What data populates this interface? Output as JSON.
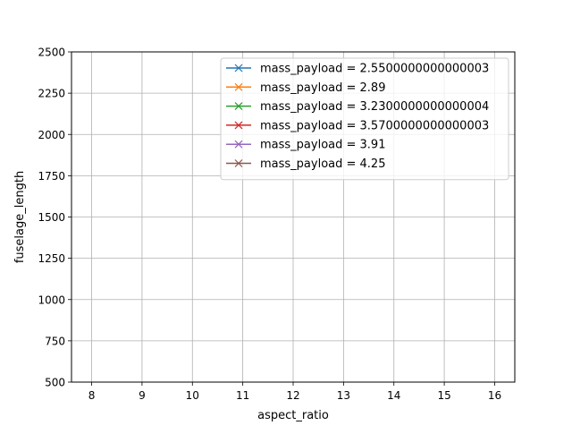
{
  "chart_data": {
    "type": "line",
    "title": "",
    "xlabel": "aspect_ratio",
    "ylabel": "fuselage_length",
    "xlim": [
      7.6,
      16.4
    ],
    "ylim": [
      500,
      2500
    ],
    "xticks": [
      8,
      9,
      10,
      11,
      12,
      13,
      14,
      15,
      16
    ],
    "yticks": [
      500,
      750,
      1000,
      1250,
      1500,
      1750,
      2000,
      2250,
      2500
    ],
    "grid": true,
    "legend_position": "top-right",
    "marker": "x",
    "series": [
      {
        "name": "mass_payload = 2.5500000000000003",
        "color": "#1f77b4",
        "x": [],
        "y": []
      },
      {
        "name": "mass_payload = 2.89",
        "color": "#ff7f0e",
        "x": [],
        "y": []
      },
      {
        "name": "mass_payload = 3.2300000000000004",
        "color": "#2ca02c",
        "x": [],
        "y": []
      },
      {
        "name": "mass_payload = 3.5700000000000003",
        "color": "#d62728",
        "x": [],
        "y": []
      },
      {
        "name": "mass_payload = 3.91",
        "color": "#9467bd",
        "x": [],
        "y": []
      },
      {
        "name": "mass_payload = 4.25",
        "color": "#8c564b",
        "x": [],
        "y": []
      }
    ]
  }
}
